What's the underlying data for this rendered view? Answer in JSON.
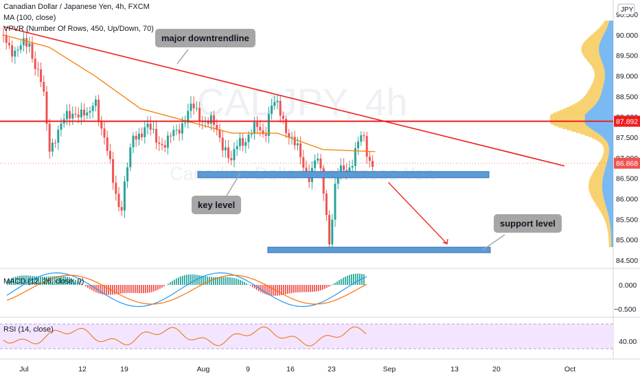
{
  "header": {
    "symbol_line": "Canadian Dollar / Japanese Yen, 4h, FXCM",
    "ma_line": "MA (100, close)",
    "vpvr_line": "VPVR (Number Of Rows, 450, Up/Down, 70)"
  },
  "watermark": {
    "big": "CADJPY, 4h",
    "small": "Canadian Dollar / Japanese Yen"
  },
  "currency_badge": "JPY",
  "annotations": {
    "downtrend": "major downtrendline",
    "key_level": "key level",
    "support": "support level"
  },
  "price_badges": {
    "resistance": "87.892",
    "last": "86.868"
  },
  "chart_data": [
    {
      "type": "line",
      "panel": "price",
      "y_ticks": [
        "90.500",
        "90.000",
        "89.500",
        "89.000",
        "88.500",
        "88.000",
        "87.500",
        "87.000",
        "86.500",
        "86.000",
        "85.500",
        "85.000",
        "84.500"
      ],
      "ylim": [
        84.35,
        90.55
      ],
      "x_ticks": [
        "Jul",
        "12",
        "19",
        "Aug",
        "9",
        "16",
        "23",
        "Sep",
        "13",
        "20",
        "Oct"
      ],
      "series": [
        {
          "name": "CADJPY close",
          "x": [
            "Jul 1",
            "Jul 3",
            "Jul 5",
            "Jul 7",
            "Jul 8",
            "Jul 9",
            "Jul 12",
            "Jul 14",
            "Jul 15",
            "Jul 16",
            "Jul 19",
            "Jul 20",
            "Jul 21",
            "Jul 23",
            "Jul 26",
            "Jul 28",
            "Jul 30",
            "Aug 2",
            "Aug 4",
            "Aug 5",
            "Aug 6",
            "Aug 9",
            "Aug 10",
            "Aug 11",
            "Aug 12",
            "Aug 13",
            "Aug 16",
            "Aug 17",
            "Aug 18",
            "Aug 19",
            "Aug 20",
            "Aug 21",
            "Aug 23",
            "Aug 24",
            "Aug 25",
            "Aug 26",
            "Aug 27"
          ],
          "values": [
            89.9,
            89.6,
            89.8,
            88.7,
            87.2,
            87.6,
            88.2,
            87.9,
            88.6,
            87.7,
            85.7,
            86.7,
            87.6,
            87.7,
            87.3,
            87.8,
            88.2,
            87.8,
            87.3,
            86.8,
            87.4,
            87.7,
            87.6,
            88.3,
            88.2,
            87.9,
            86.8,
            86.6,
            87.0,
            86.3,
            85.0,
            86.5,
            86.8,
            87.2,
            87.5,
            87.0,
            86.87
          ]
        },
        {
          "name": "MA (100, close)",
          "x": [
            "Jul 1",
            "Jul 8",
            "Jul 15",
            "Jul 22",
            "Jul 29",
            "Aug 5",
            "Aug 12",
            "Aug 19",
            "Aug 27"
          ],
          "values": [
            90.0,
            89.7,
            89.0,
            88.2,
            87.9,
            87.6,
            87.6,
            87.2,
            87.15
          ]
        }
      ],
      "trendline": {
        "x": [
          "Jul 1",
          "Sep 25"
        ],
        "values": [
          90.2,
          86.8
        ]
      },
      "resistance_level": 87.892,
      "key_level": 86.58,
      "support_level": 84.75,
      "projection": {
        "x": [
          "Aug 29",
          "Sep 7"
        ],
        "values": [
          86.4,
          84.9
        ]
      }
    },
    {
      "type": "bar",
      "panel": "MACD (12, 26, close, 9)",
      "title": "MACD (12, 26, close, 9)",
      "y_ticks": [
        "0.000",
        "−0.500"
      ],
      "ylim": [
        -0.75,
        0.35
      ]
    },
    {
      "type": "line",
      "panel": "RSI (14, close)",
      "title": "RSI (14, close)",
      "y_ticks": [
        "40.00"
      ],
      "ylim": [
        20,
        80
      ]
    }
  ],
  "colors": {
    "up": "#26a69a",
    "down": "#ef5350",
    "ma": "#f57c00",
    "trend": "#ef1c1c",
    "level": "#5b9bd5",
    "vp_blue": "#4da3ee",
    "vp_orange": "#f6c341",
    "rsi": "#ef6c00",
    "rsi_band": "#f3e5ff"
  }
}
